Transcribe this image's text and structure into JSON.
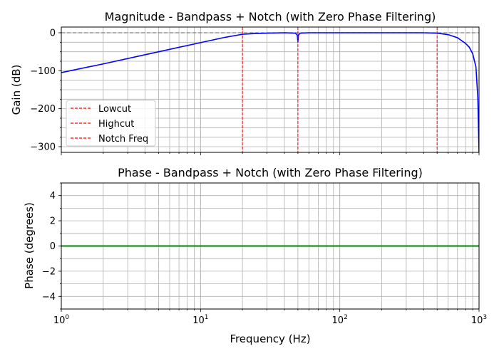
{
  "chart_data": [
    {
      "type": "line",
      "title": "Magnitude - Bandpass + Notch (with Zero Phase Filtering)",
      "xlabel": "",
      "ylabel": "Gain (dB)",
      "xscale": "log",
      "xlim": [
        1,
        1000
      ],
      "ylim": [
        -315,
        15
      ],
      "yticks": [
        0,
        -100,
        -200,
        -300
      ],
      "yticklabels": [
        "0",
        "−100",
        "−200",
        "−300"
      ],
      "grid": true,
      "legend_position": "center-left",
      "series": [
        {
          "color": "#0000ff",
          "x": [
            1,
            2,
            5,
            10,
            15,
            20,
            25,
            30,
            40,
            48,
            49.5,
            50,
            50.5,
            52,
            60,
            100,
            200,
            300,
            400,
            500,
            600,
            700,
            800,
            850,
            900,
            950,
            980,
            1000
          ],
          "y": [
            -105,
            -82,
            -50,
            -26,
            -12,
            -4,
            -2,
            -1,
            0,
            -1,
            -6,
            -25,
            -6,
            -1,
            0,
            0,
            0,
            0,
            0,
            -1,
            -5,
            -13,
            -28,
            -38,
            -55,
            -90,
            -170,
            -315
          ]
        }
      ],
      "vlines": [
        {
          "name": "Lowcut",
          "x": 20,
          "color": "#ff0000",
          "style": "dashed"
        },
        {
          "name": "Highcut",
          "x": 50,
          "color": "#ff0000",
          "style": "dashed"
        },
        {
          "name": "Notch Freq",
          "x": 500,
          "color": "#ff0000",
          "style": "dashed"
        }
      ],
      "hlines": [
        {
          "y": 0,
          "color": "#808080",
          "style": "dashed"
        }
      ],
      "legend": [
        "Lowcut",
        "Highcut",
        "Notch Freq"
      ]
    },
    {
      "type": "line",
      "title": "Phase - Bandpass + Notch (with Zero Phase Filtering)",
      "xlabel": "Frequency (Hz)",
      "ylabel": "Phase (degrees)",
      "xscale": "log",
      "xlim": [
        1,
        1000
      ],
      "ylim": [
        -5,
        5
      ],
      "yticks": [
        4,
        2,
        0,
        -2,
        -4
      ],
      "yticklabels": [
        "4",
        "2",
        "0",
        "−2",
        "−4"
      ],
      "grid": true,
      "series": [
        {
          "color": "#008000",
          "x": [
            1,
            1000
          ],
          "y": [
            0,
            0
          ]
        }
      ]
    }
  ],
  "xticks": [
    {
      "base": "10",
      "exp": "0",
      "value": 1
    },
    {
      "base": "10",
      "exp": "1",
      "value": 10
    },
    {
      "base": "10",
      "exp": "2",
      "value": 100
    },
    {
      "base": "10",
      "exp": "3",
      "value": 1000
    }
  ]
}
